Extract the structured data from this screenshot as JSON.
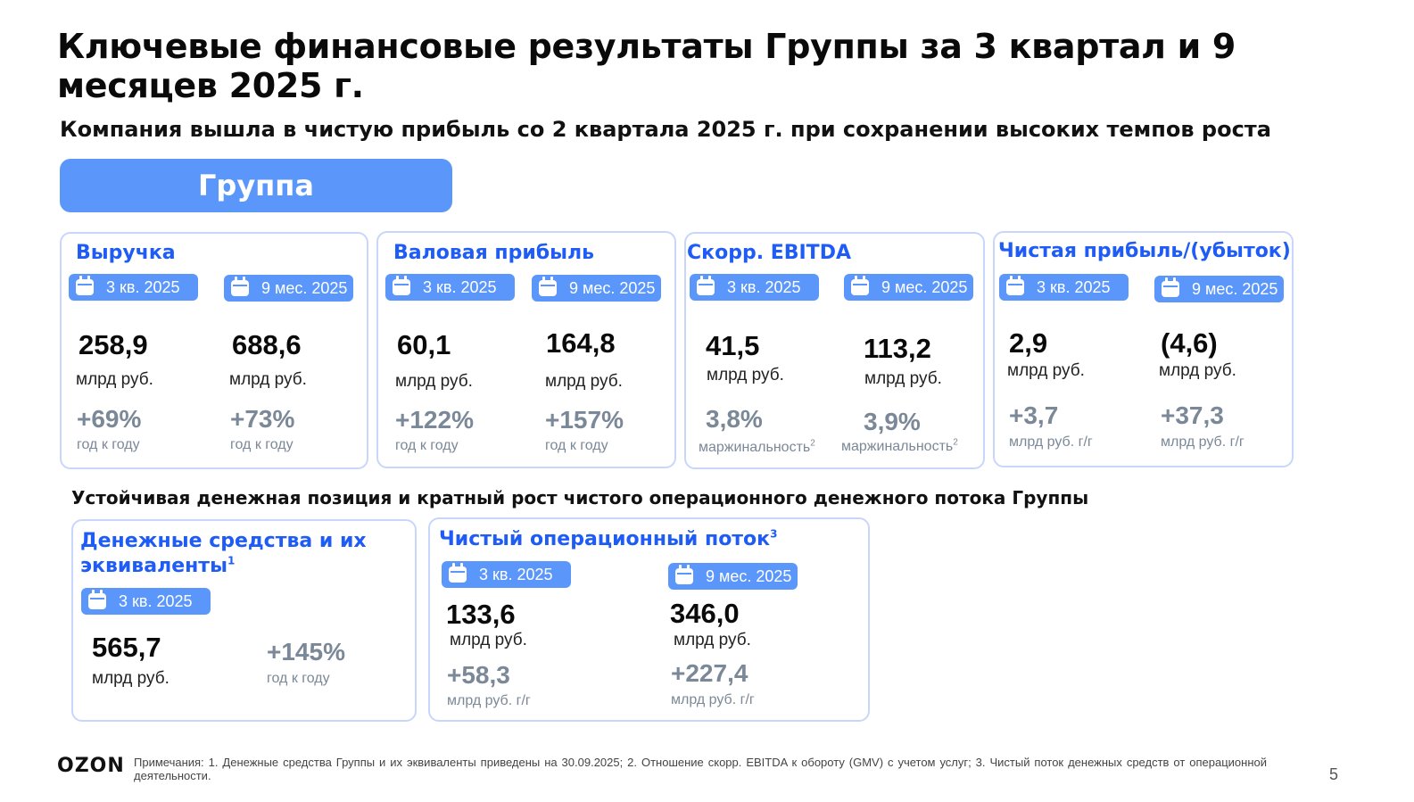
{
  "title": "Ключевые финансовые результаты Группы за 3 квартал и 9 месяцев 2025 г.",
  "subtitle": "Компания вышла в чистую прибыль со 2 квартала 2025 г. при сохранении высоких темпов роста",
  "group_label": "Группа",
  "icons": {
    "badge_icon": "calendar-icon"
  },
  "colors": {
    "accent": "#5b97fb",
    "title_blue": "#1f5cf5",
    "muted": "#7b8898",
    "border": "#c9d6fb"
  },
  "cards": {
    "revenue": {
      "title": "Выручка",
      "q3": {
        "period": "3 кв. 2025",
        "value": "258,9",
        "unit": "млрд руб.",
        "delta": "+69%",
        "delta_label": "год к году"
      },
      "m9": {
        "period": "9 мес. 2025",
        "value": "688,6",
        "unit": "млрд руб.",
        "delta": "+73%",
        "delta_label": "год к году"
      }
    },
    "gross": {
      "title": "Валовая прибыль",
      "q3": {
        "period": "3 кв. 2025",
        "value": "60,1",
        "unit": "млрд руб.",
        "delta": "+122%",
        "delta_label": "год к году"
      },
      "m9": {
        "period": "9 мес. 2025",
        "value": "164,8",
        "unit": "млрд руб.",
        "delta": "+157%",
        "delta_label": "год к году"
      }
    },
    "ebitda": {
      "title": "Скорр. EBITDA",
      "q3": {
        "period": "3 кв. 2025",
        "value": "41,5",
        "unit": "млрд руб.",
        "delta": "3,8%",
        "delta_label": "маржинальность",
        "delta_sup": "2"
      },
      "m9": {
        "period": "9 мес. 2025",
        "value": "113,2",
        "unit": "млрд руб.",
        "delta": "3,9%",
        "delta_label": "маржинальность",
        "delta_sup": "2"
      }
    },
    "net": {
      "title": "Чистая прибыль/(убыток)",
      "q3": {
        "period": "3 кв. 2025",
        "value": "2,9",
        "unit": "млрд руб.",
        "delta": "+3,7",
        "delta_label": "млрд руб. г/г"
      },
      "m9": {
        "period": "9 мес. 2025",
        "value": "(4,6)",
        "unit": "млрд руб.",
        "delta": "+37,3",
        "delta_label": "млрд руб. г/г"
      }
    }
  },
  "section2_title": "Устойчивая денежная позиция и кратный рост чистого операционного денежного потока Группы",
  "cash": {
    "title": "Денежные средства и их эквиваленты",
    "title_sup": "1",
    "period": "3 кв. 2025",
    "value": "565,7",
    "unit": "млрд руб.",
    "delta": "+145%",
    "delta_label": "год к году"
  },
  "flow": {
    "title": "Чистый операционный поток",
    "title_sup": "3",
    "q3": {
      "period": "3 кв. 2025",
      "value": "133,6",
      "unit": "млрд руб.",
      "delta": "+58,3",
      "delta_label": "млрд руб. г/г"
    },
    "m9": {
      "period": "9 мес. 2025",
      "value": "346,0",
      "unit": "млрд руб.",
      "delta": "+227,4",
      "delta_label": "млрд руб. г/г"
    }
  },
  "footer": {
    "logo": "OZON",
    "notes": "Примечания: 1. Денежные средства Группы и их эквиваленты приведены на 30.09.2025; 2. Отношение скорр. EBITDA к обороту (GMV) с учетом услуг; 3. Чистый поток денежных средств от операционной деятельности.",
    "page": "5"
  }
}
